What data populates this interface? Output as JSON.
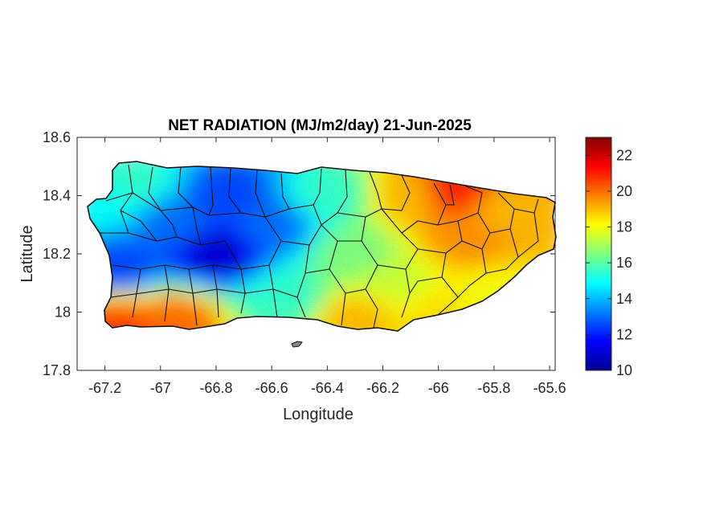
{
  "figure": {
    "title": "NET RADIATION (MJ/m2/day) 21-Jun-2025"
  },
  "map": {
    "xlabel": "Longitude",
    "ylabel": "Latitude",
    "xlim": [
      -67.3,
      -65.58
    ],
    "ylim": [
      17.8,
      18.6
    ],
    "xticks": [
      -67.2,
      -67.0,
      -66.8,
      -66.6,
      -66.4,
      -66.2,
      -66.0,
      -65.8,
      -65.6
    ],
    "xtick_labels": [
      "-67.2",
      "-67",
      "-66.8",
      "-66.6",
      "-66.4",
      "-66.2",
      "-66",
      "-65.8",
      "-65.6"
    ],
    "yticks": [
      17.8,
      18.0,
      18.2,
      18.4,
      18.6
    ],
    "ytick_labels": [
      "17.8",
      "18",
      "18.2",
      "18.4",
      "18.6"
    ],
    "region_outline_color": "#111111",
    "colormap": "jet"
  },
  "colorbar": {
    "range": [
      10,
      23
    ],
    "ticks": [
      10,
      12,
      14,
      16,
      18,
      20,
      22
    ],
    "tick_labels": [
      "10",
      "12",
      "14",
      "16",
      "18",
      "20",
      "22"
    ]
  },
  "chart_data": {
    "type": "heatmap",
    "title": "NET RADIATION (MJ/m2/day) 21-Jun-2025",
    "xlabel": "Longitude",
    "ylabel": "Latitude",
    "xlim": [
      -67.3,
      -65.58
    ],
    "ylim": [
      17.8,
      18.6
    ],
    "color_range": [
      10,
      23
    ],
    "colormap": "jet",
    "field_samples": [
      {
        "lon": -67.2,
        "lat": 18.38,
        "value": 15.0
      },
      {
        "lon": -67.1,
        "lat": 18.45,
        "value": 15.5
      },
      {
        "lon": -66.95,
        "lat": 18.3,
        "value": 13.0
      },
      {
        "lon": -67.15,
        "lat": 18.15,
        "value": 12.5
      },
      {
        "lon": -67.15,
        "lat": 17.97,
        "value": 20.5
      },
      {
        "lon": -66.95,
        "lat": 17.97,
        "value": 20.0
      },
      {
        "lon": -66.8,
        "lat": 18.2,
        "value": 11.0
      },
      {
        "lon": -66.75,
        "lat": 18.4,
        "value": 12.5
      },
      {
        "lon": -66.6,
        "lat": 18.3,
        "value": 13.0
      },
      {
        "lon": -66.55,
        "lat": 18.05,
        "value": 15.5
      },
      {
        "lon": -66.4,
        "lat": 18.4,
        "value": 15.5
      },
      {
        "lon": -66.3,
        "lat": 18.2,
        "value": 16.5
      },
      {
        "lon": -66.3,
        "lat": 17.98,
        "value": 19.0
      },
      {
        "lon": -66.15,
        "lat": 18.1,
        "value": 17.5
      },
      {
        "lon": -66.1,
        "lat": 18.4,
        "value": 19.0
      },
      {
        "lon": -65.95,
        "lat": 18.42,
        "value": 21.0
      },
      {
        "lon": -65.9,
        "lat": 18.25,
        "value": 19.5
      },
      {
        "lon": -65.75,
        "lat": 18.35,
        "value": 19.0
      },
      {
        "lon": -65.8,
        "lat": 18.05,
        "value": 18.0
      },
      {
        "lon": -66.0,
        "lat": 18.0,
        "value": 18.5
      }
    ]
  }
}
